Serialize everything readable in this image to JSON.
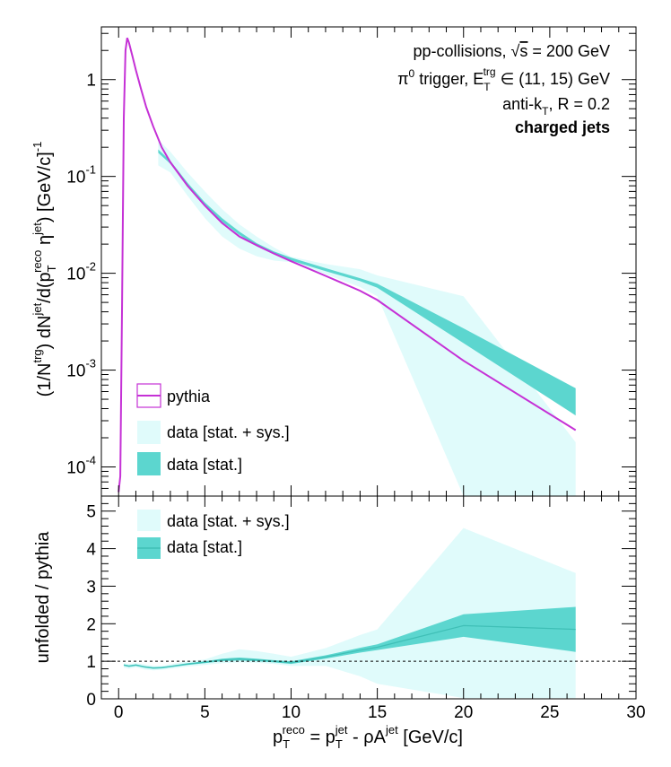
{
  "chart_data": [
    {
      "type": "area",
      "panel": "upper",
      "yscale": "log",
      "xlim": [
        -1,
        30
      ],
      "ylim": [
        5e-05,
        3.5
      ],
      "ylabel_parts": [
        "(1/N",
        "trg",
        ") dN",
        "jet",
        "/d(p",
        "T",
        "reco",
        " η",
        "jet",
        ") [GeV/c]",
        "-1"
      ],
      "y_ticks": [
        {
          "v": 1,
          "m": "1",
          "e": ""
        },
        {
          "v": 0.1,
          "m": "10",
          "e": "-1"
        },
        {
          "v": 0.01,
          "m": "10",
          "e": "-2"
        },
        {
          "v": 0.001,
          "m": "10",
          "e": "-3"
        },
        {
          "v": 0.0001,
          "m": "10",
          "e": "-4"
        }
      ],
      "annotations": {
        "line1_pre": "pp-collisions, ",
        "line1_s": "s",
        "line1_post": " = 200 GeV",
        "line2_pi": "π",
        "line2_pi_sup": "0",
        "line2_mid": " trigger, E",
        "line2_sub": "T",
        "line2_sup": "trg",
        "line2_post": " ∈ (11, 15) GeV",
        "line3_pre": "anti-k",
        "line3_sub": "T",
        "line3_post": ", R = 0.2",
        "line4": "charged jets"
      },
      "legend": {
        "placement": "bottom-left",
        "entries": [
          "pythia",
          "data [stat. + sys.]",
          "data [stat.]"
        ]
      },
      "series": [
        {
          "name": "pythia",
          "style": "line",
          "color": "#c531d6",
          "x": [
            0,
            0.1,
            0.2,
            0.3,
            0.4,
            0.5,
            0.6,
            0.8,
            1.0,
            1.3,
            1.6,
            2.0,
            2.5,
            3.0,
            4.0,
            5.0,
            6.0,
            7.0,
            8.0,
            9.0,
            10.0,
            12.0,
            14.0,
            15.0,
            20.0,
            26.5
          ],
          "y": [
            5.5e-05,
            8e-05,
            0.005,
            0.4,
            2.0,
            2.7,
            2.4,
            1.75,
            1.25,
            0.8,
            0.52,
            0.33,
            0.2,
            0.14,
            0.08,
            0.05,
            0.033,
            0.024,
            0.0195,
            0.016,
            0.0133,
            0.0094,
            0.0066,
            0.0053,
            0.00125,
            0.00024
          ]
        },
        {
          "name": "data [stat. + sys.]",
          "style": "band",
          "color": "#e0fbfb",
          "x": [
            2.3,
            3,
            4,
            5,
            6,
            7,
            8,
            9,
            10,
            12,
            14,
            15,
            20,
            26.5
          ],
          "lower": [
            0.13,
            0.11,
            0.063,
            0.037,
            0.024,
            0.018,
            0.015,
            0.0135,
            0.013,
            0.0098,
            0.0072,
            0.0058,
            5e-05,
            5e-05
          ],
          "upper": [
            0.24,
            0.18,
            0.11,
            0.07,
            0.046,
            0.032,
            0.024,
            0.0185,
            0.0148,
            0.0125,
            0.011,
            0.0095,
            0.0058,
            0.00018
          ]
        },
        {
          "name": "data [stat.]",
          "style": "band",
          "color": "#5cd6cf",
          "x": [
            2.3,
            3,
            4,
            5,
            6,
            7,
            8,
            9,
            10,
            12,
            14,
            15,
            20,
            26.5
          ],
          "lower": [
            0.175,
            0.135,
            0.08,
            0.05,
            0.034,
            0.025,
            0.019,
            0.0157,
            0.0135,
            0.0105,
            0.0083,
            0.0071,
            0.0019,
            0.00034
          ],
          "upper": [
            0.19,
            0.145,
            0.086,
            0.054,
            0.037,
            0.027,
            0.0205,
            0.0168,
            0.0145,
            0.0113,
            0.0089,
            0.0078,
            0.0027,
            0.00065
          ]
        }
      ]
    },
    {
      "type": "area",
      "panel": "lower",
      "xlim": [
        -1,
        30
      ],
      "ylim": [
        0,
        5.4
      ],
      "ylabel": "unfolded / pythia",
      "y_ticks": [
        0,
        1,
        2,
        3,
        4,
        5
      ],
      "x_ticks": [
        0,
        5,
        10,
        15,
        20,
        25,
        30
      ],
      "xlabel_parts": [
        "p",
        "T",
        "reco",
        " = p",
        "T",
        "jet",
        " - ρA",
        "jet",
        " [GeV/c]"
      ],
      "reference_line": {
        "y": 1,
        "style": "dashed"
      },
      "legend": {
        "placement": "top-left",
        "entries": [
          "data [stat. + sys.]",
          "data [stat.]"
        ]
      },
      "series": [
        {
          "name": "data [stat. + sys.]",
          "style": "band",
          "color": "#e0fbfb",
          "x": [
            0.3,
            0.6,
            1,
            1.5,
            2,
            2.5,
            3,
            4,
            5,
            6,
            7,
            8,
            9,
            10,
            12,
            14,
            15,
            20,
            26.5
          ],
          "lower": [
            0.83,
            0.8,
            0.84,
            0.78,
            0.76,
            0.77,
            0.8,
            0.86,
            0.9,
            0.95,
            0.97,
            0.96,
            0.93,
            0.88,
            0.88,
            0.6,
            0.4,
            0.02,
            0.02
          ],
          "upper": [
            0.95,
            0.93,
            0.95,
            0.92,
            0.88,
            0.88,
            0.92,
            1.0,
            1.05,
            1.2,
            1.32,
            1.27,
            1.2,
            1.12,
            1.35,
            1.7,
            1.85,
            4.55,
            3.35
          ]
        },
        {
          "name": "data [stat.]",
          "style": "band",
          "color": "#5cd6cf",
          "x": [
            0.3,
            0.6,
            1,
            1.5,
            2,
            2.5,
            3,
            4,
            5,
            6,
            7,
            8,
            9,
            10,
            12,
            14,
            15,
            20,
            26.5
          ],
          "lower": [
            0.88,
            0.85,
            0.88,
            0.83,
            0.8,
            0.81,
            0.84,
            0.9,
            0.95,
            1.0,
            1.02,
            1.0,
            0.97,
            0.93,
            1.07,
            1.23,
            1.3,
            1.65,
            1.25
          ],
          "upper": [
            0.92,
            0.89,
            0.92,
            0.87,
            0.84,
            0.85,
            0.88,
            0.95,
            1.0,
            1.07,
            1.1,
            1.07,
            1.03,
            1.0,
            1.16,
            1.36,
            1.45,
            2.25,
            2.45
          ]
        }
      ]
    }
  ]
}
